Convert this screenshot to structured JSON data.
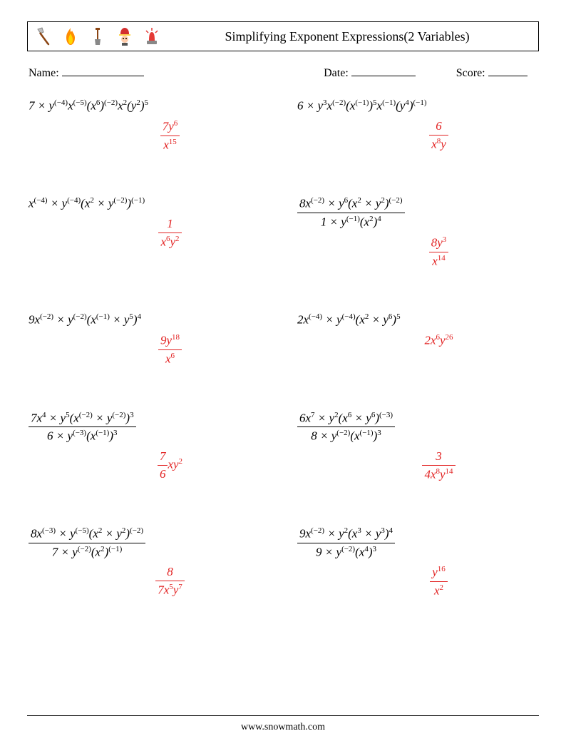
{
  "header": {
    "title": "Simplifying Exponent Expressions(2 Variables)",
    "icons": [
      "axe",
      "fire",
      "shovel",
      "firefighter",
      "siren"
    ]
  },
  "info": {
    "name_label": "Name:",
    "date_label": "Date:",
    "score_label": "Score:"
  },
  "problems": [
    {
      "expr_html": "7 × <i>y</i><sup>(−4)</sup><i>x</i><sup>(−5)</sup>(<i>x</i><sup>6</sup>)<sup>(−2)</sup><i>x</i><sup>2</sup>(<i>y</i><sup>2</sup>)<sup>5</sup>",
      "answer_num": "7<i>y</i><sup>6</sup>",
      "answer_den": "<i>x</i><sup>15</sup>",
      "answer_color": "#e22222"
    },
    {
      "expr_html": "6 × <i>y</i><sup>3</sup><i>x</i><sup>(−2)</sup>(<i>x</i><sup>(−1)</sup>)<sup>5</sup><i>x</i><sup>(−1)</sup>(<i>y</i><sup>4</sup>)<sup>(−1)</sup>",
      "answer_num": "6",
      "answer_den": "<i>x</i><sup>8</sup><i>y</i>",
      "answer_color": "#e22222"
    },
    {
      "expr_html": "<i>x</i><sup>(−4)</sup> × <i>y</i><sup>(−4)</sup>(<i>x</i><sup>2</sup> × <i>y</i><sup>(−2)</sup>)<sup>(−1)</sup>",
      "answer_num": "1",
      "answer_den": "<i>x</i><sup>6</sup><i>y</i><sup>2</sup>",
      "answer_color": "#e22222"
    },
    {
      "expr_num": "8<i>x</i><sup>(−2)</sup> × <i>y</i><sup>6</sup>(<i>x</i><sup>2</sup> × <i>y</i><sup>2</sup>)<sup>(−2)</sup>",
      "expr_den": "1 × <i>y</i><sup>(−1)</sup>(<i>x</i><sup>2</sup>)<sup>4</sup>",
      "answer_num": "8<i>y</i><sup>3</sup>",
      "answer_den": "<i>x</i><sup>14</sup>",
      "answer_color": "#e22222"
    },
    {
      "expr_html": "9<i>x</i><sup>(−2)</sup> × <i>y</i><sup>(−2)</sup>(<i>x</i><sup>(−1)</sup> × <i>y</i><sup>5</sup>)<sup>4</sup>",
      "answer_num": "9<i>y</i><sup>18</sup>",
      "answer_den": "<i>x</i><sup>6</sup>",
      "answer_color": "#e22222"
    },
    {
      "expr_html": "2<i>x</i><sup>(−4)</sup> × <i>y</i><sup>(−4)</sup>(<i>x</i><sup>2</sup> × <i>y</i><sup>6</sup>)<sup>5</sup>",
      "answer_inline": "2<i>x</i><sup>6</sup><i>y</i><sup>26</sup>",
      "answer_color": "#e22222"
    },
    {
      "expr_num": "7<i>x</i><sup>4</sup> × <i>y</i><sup>5</sup>(<i>x</i><sup>(−2)</sup> × <i>y</i><sup>(−2)</sup>)<sup>3</sup>",
      "expr_den": "6 × <i>y</i><sup>(−3)</sup>(<i>x</i><sup>(−1)</sup>)<sup>3</sup>",
      "answer_prefix_num": "7",
      "answer_prefix_den": "6",
      "answer_suffix": "<i>xy</i><sup>2</sup>",
      "answer_color": "#e22222"
    },
    {
      "expr_num": "6<i>x</i><sup>7</sup> × <i>y</i><sup>2</sup>(<i>x</i><sup>6</sup> × <i>y</i><sup>6</sup>)<sup>(−3)</sup>",
      "expr_den": "8 × <i>y</i><sup>(−2)</sup>(<i>x</i><sup>(−1)</sup>)<sup>3</sup>",
      "answer_num": "3",
      "answer_den": "4<i>x</i><sup>8</sup><i>y</i><sup>14</sup>",
      "answer_color": "#e22222"
    },
    {
      "expr_num": "8<i>x</i><sup>(−3)</sup> × <i>y</i><sup>(−5)</sup>(<i>x</i><sup>2</sup> × <i>y</i><sup>2</sup>)<sup>(−2)</sup>",
      "expr_den": "7 × <i>y</i><sup>(−2)</sup>(<i>x</i><sup>2</sup>)<sup>(−1)</sup>",
      "answer_num": "8",
      "answer_den": "7<i>x</i><sup>5</sup><i>y</i><sup>7</sup>",
      "answer_color": "#e22222"
    },
    {
      "expr_num": "9<i>x</i><sup>(−2)</sup> × <i>y</i><sup>2</sup>(<i>x</i><sup>3</sup> × <i>y</i><sup>3</sup>)<sup>4</sup>",
      "expr_den": "9 × <i>y</i><sup>(−2)</sup>(<i>x</i><sup>4</sup>)<sup>3</sup>",
      "answer_num": "<i>y</i><sup>16</sup>",
      "answer_den": "<i>x</i><sup>2</sup>",
      "answer_color": "#e22222"
    }
  ],
  "footer": {
    "text": "www.snowmath.com"
  },
  "colors": {
    "text": "#000000",
    "answer": "#e22222",
    "background": "#ffffff"
  }
}
